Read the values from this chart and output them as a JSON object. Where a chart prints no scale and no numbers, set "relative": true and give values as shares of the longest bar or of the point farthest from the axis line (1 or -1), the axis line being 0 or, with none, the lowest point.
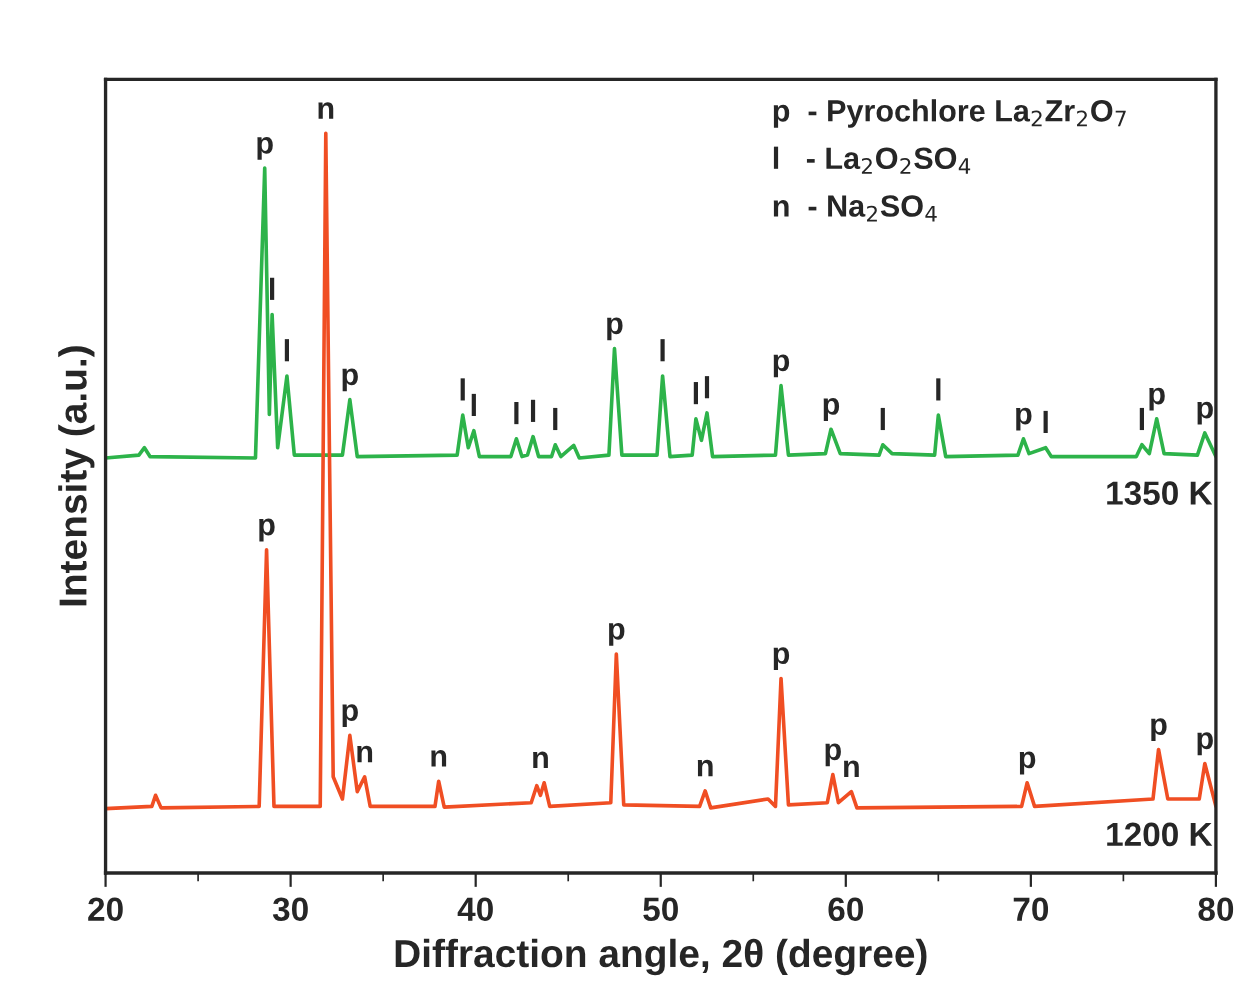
{
  "chart_data": {
    "type": "line",
    "relative": true,
    "xlabel": "Diffraction angle, 2θ (degree)",
    "ylabel": "Intensity (a.u.)",
    "xlim": [
      20,
      80
    ],
    "xticks": [
      20,
      30,
      40,
      50,
      60,
      70,
      80
    ],
    "tick_labels": "x",
    "grid": false,
    "legend": false,
    "marker": "none",
    "line_style": "solid",
    "series": [
      {
        "color": "#2db34a",
        "x": [
          20,
          21.8,
          22.1,
          22.4,
          28.1,
          28.6,
          28.85,
          29.0,
          29.3,
          29.8,
          30.2,
          32.8,
          33.2,
          33.6,
          39.0,
          39.3,
          39.6,
          39.9,
          40.2,
          41.9,
          42.2,
          42.5,
          42.8,
          43.1,
          43.4,
          44.1,
          44.3,
          44.6,
          45.3,
          45.6,
          47.2,
          47.5,
          47.9,
          49.8,
          50.1,
          50.5,
          51.7,
          51.9,
          52.2,
          52.5,
          52.8,
          56.2,
          56.5,
          56.9,
          58.9,
          59.2,
          59.7,
          61.8,
          62.0,
          62.5,
          64.8,
          65.0,
          65.4,
          69.3,
          69.6,
          69.9,
          70.8,
          71.1,
          75.7,
          76.0,
          76.4,
          76.8,
          77.2,
          79.0,
          79.4,
          80
        ],
        "values": [
          0.561,
          0.565,
          0.575,
          0.563,
          0.561,
          0.953,
          0.62,
          0.755,
          0.575,
          0.672,
          0.565,
          0.565,
          0.64,
          0.563,
          0.565,
          0.619,
          0.575,
          0.598,
          0.563,
          0.563,
          0.587,
          0.563,
          0.565,
          0.59,
          0.563,
          0.563,
          0.579,
          0.563,
          0.578,
          0.561,
          0.565,
          0.709,
          0.565,
          0.565,
          0.672,
          0.563,
          0.565,
          0.614,
          0.585,
          0.622,
          0.563,
          0.565,
          0.659,
          0.565,
          0.567,
          0.6,
          0.567,
          0.565,
          0.579,
          0.567,
          0.565,
          0.619,
          0.563,
          0.565,
          0.587,
          0.567,
          0.575,
          0.563,
          0.563,
          0.579,
          0.567,
          0.614,
          0.567,
          0.565,
          0.595,
          0.563
        ]
      },
      {
        "color": "#f04e23",
        "x": [
          20,
          22.5,
          22.7,
          23.0,
          28.3,
          28.7,
          29.1,
          31.6,
          31.9,
          32.3,
          32.8,
          33.2,
          33.6,
          34.0,
          34.3,
          37.8,
          38.0,
          38.3,
          43.0,
          43.3,
          43.5,
          43.7,
          44.0,
          47.3,
          47.6,
          48.0,
          52.1,
          52.4,
          52.7,
          55.8,
          56.2,
          56.5,
          56.9,
          59.0,
          59.3,
          59.6,
          60.3,
          60.6,
          69.5,
          69.8,
          70.2,
          76.6,
          76.9,
          77.4,
          79.1,
          79.4,
          80
        ],
        "values": [
          0.087,
          0.09,
          0.105,
          0.088,
          0.09,
          0.437,
          0.09,
          0.09,
          1.0,
          0.13,
          0.1,
          0.186,
          0.11,
          0.13,
          0.09,
          0.09,
          0.124,
          0.089,
          0.095,
          0.118,
          0.105,
          0.122,
          0.09,
          0.095,
          0.296,
          0.092,
          0.09,
          0.111,
          0.088,
          0.1,
          0.09,
          0.263,
          0.092,
          0.095,
          0.133,
          0.095,
          0.11,
          0.088,
          0.09,
          0.122,
          0.09,
          0.1,
          0.167,
          0.1,
          0.1,
          0.148,
          0.09
        ]
      }
    ],
    "annotations": [
      "p  - Pyrochlore La$_{2}$Zr$_{2}$O$_{7}$",
      "l   - La$_{2}$O$_{2}$SO$_{4}$",
      "n  - Na$_{2}$SO$_{4}$",
      "1350 K",
      "1200 K",
      {
        "text": "p",
        "x": 28.6,
        "y": 0.953
      },
      {
        "text": "l",
        "x": 29.0,
        "y": 0.755
      },
      {
        "text": "l",
        "x": 29.8,
        "y": 0.672
      },
      {
        "text": "p",
        "x": 33.2,
        "y": 0.64
      },
      {
        "text": "l",
        "x": 39.3,
        "y": 0.619
      },
      {
        "text": "l",
        "x": 39.9,
        "y": 0.598
      },
      {
        "text": "l",
        "x": 42.2,
        "y": 0.587
      },
      {
        "text": "l",
        "x": 43.1,
        "y": 0.59
      },
      {
        "text": "l",
        "x": 44.3,
        "y": 0.579
      },
      {
        "text": "p",
        "x": 47.5,
        "y": 0.709
      },
      {
        "text": "l",
        "x": 50.1,
        "y": 0.672
      },
      {
        "text": "l",
        "x": 51.9,
        "y": 0.614
      },
      {
        "text": "l",
        "x": 52.5,
        "y": 0.622
      },
      {
        "text": "p",
        "x": 56.5,
        "y": 0.659
      },
      {
        "text": "p",
        "x": 59.2,
        "y": 0.6
      },
      {
        "text": "l",
        "x": 62.0,
        "y": 0.579
      },
      {
        "text": "l",
        "x": 65.0,
        "y": 0.619
      },
      {
        "text": "p",
        "x": 69.6,
        "y": 0.587
      },
      {
        "text": "l",
        "x": 70.8,
        "y": 0.575
      },
      {
        "text": "l",
        "x": 76.0,
        "y": 0.579
      },
      {
        "text": "p",
        "x": 76.8,
        "y": 0.614
      },
      {
        "text": "p",
        "x": 79.4,
        "y": 0.595
      },
      {
        "text": "p",
        "x": 28.7,
        "y": 0.437
      },
      {
        "text": "n",
        "x": 31.9,
        "y": 1.0
      },
      {
        "text": "p",
        "x": 33.2,
        "y": 0.186
      },
      {
        "text": "n",
        "x": 34.0,
        "y": 0.13
      },
      {
        "text": "n",
        "x": 38.0,
        "y": 0.124
      },
      {
        "text": "n",
        "x": 43.5,
        "y": 0.122
      },
      {
        "text": "p",
        "x": 47.6,
        "y": 0.296
      },
      {
        "text": "n",
        "x": 52.4,
        "y": 0.111
      },
      {
        "text": "p",
        "x": 56.5,
        "y": 0.263
      },
      {
        "text": "p",
        "x": 59.3,
        "y": 0.133
      },
      {
        "text": "n",
        "x": 60.3,
        "y": 0.11
      },
      {
        "text": "p",
        "x": 69.8,
        "y": 0.122
      },
      {
        "text": "p",
        "x": 76.9,
        "y": 0.167
      },
      {
        "text": "p",
        "x": 79.4,
        "y": 0.148
      }
    ]
  }
}
